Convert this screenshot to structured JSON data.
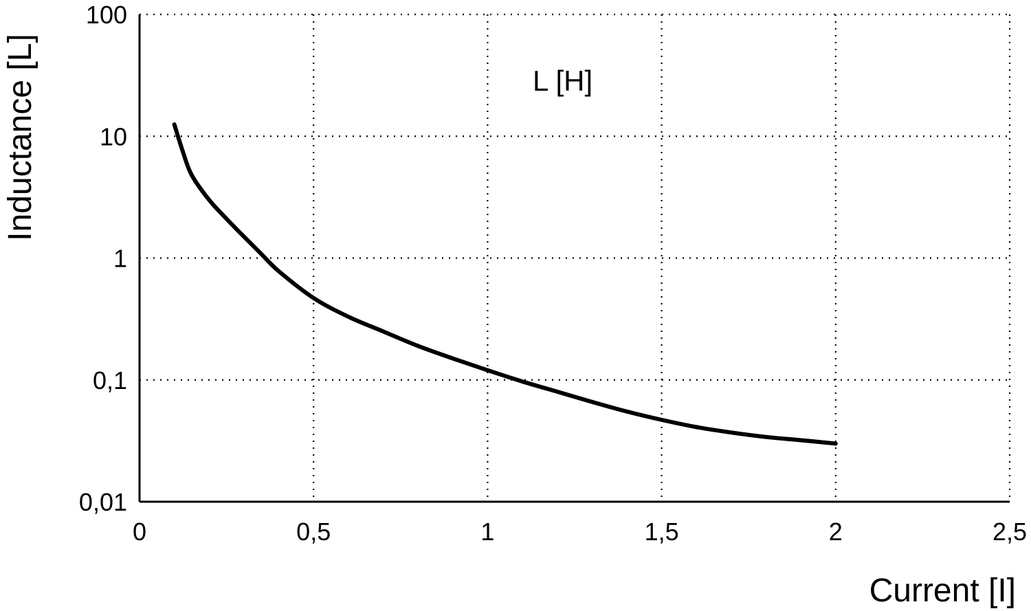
{
  "chart_data": {
    "type": "line",
    "title": "",
    "xlabel": "Current [I]",
    "ylabel": "Inductance [L]",
    "xlim": [
      0,
      2.5
    ],
    "ylim": [
      0.01,
      100
    ],
    "yscale": "log",
    "grid": true,
    "x_ticks": [
      0,
      0.5,
      1,
      1.5,
      2,
      2.5
    ],
    "x_tick_labels": [
      "0",
      "0,5",
      "1",
      "1,5",
      "2",
      "2,5"
    ],
    "y_ticks": [
      0.01,
      0.1,
      1,
      10,
      100
    ],
    "y_tick_labels": [
      "0,01",
      "0,1",
      "1",
      "10",
      "100"
    ],
    "annotation": "L [H]",
    "colors": {
      "line": "#000000",
      "grid": "#000000",
      "background": "#ffffff"
    },
    "series": [
      {
        "name": "L [H]",
        "x": [
          0.1,
          0.125,
          0.15,
          0.2,
          0.25,
          0.3,
          0.35,
          0.4,
          0.5,
          0.6,
          0.7,
          0.8,
          0.9,
          1.0,
          1.1,
          1.2,
          1.3,
          1.4,
          1.5,
          1.6,
          1.7,
          1.8,
          1.9,
          2.0
        ],
        "y": [
          12.5,
          7.4,
          4.8,
          3.0,
          2.1,
          1.5,
          1.08,
          0.78,
          0.47,
          0.33,
          0.25,
          0.19,
          0.15,
          0.12,
          0.097,
          0.08,
          0.066,
          0.055,
          0.047,
          0.041,
          0.037,
          0.034,
          0.032,
          0.03
        ]
      }
    ]
  }
}
